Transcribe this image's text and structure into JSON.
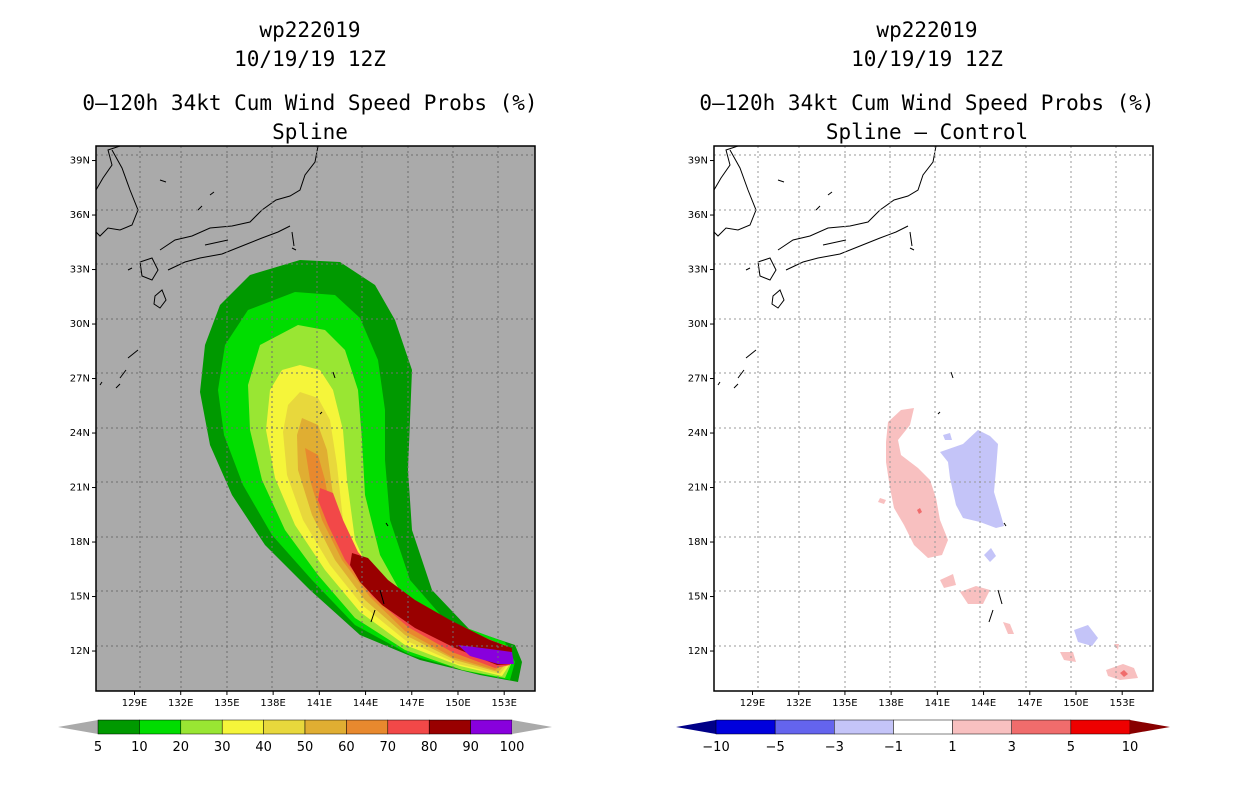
{
  "left_panel": {
    "title_lines": [
      "wp222019",
      "10/19/19 12Z",
      "0–120h 34kt Cum Wind Speed Probs (%)",
      "Spline"
    ]
  },
  "right_panel": {
    "title_lines": [
      "wp222019",
      "10/19/19 12Z",
      "0–120h 34kt Cum Wind Speed Probs (%)",
      "Spline – Control"
    ]
  },
  "chart_data": [
    {
      "type": "heatmap",
      "title": "0–120h 34kt Cum Wind Speed Probs (%)",
      "subtitle": "Spline",
      "storm": "wp222019",
      "datetime": "10/19/19 12Z",
      "x_ticks": [
        "129E",
        "132E",
        "135E",
        "138E",
        "141E",
        "144E",
        "147E",
        "150E",
        "153E"
      ],
      "y_ticks": [
        "39N",
        "36N",
        "33N",
        "30N",
        "27N",
        "24N",
        "21N",
        "18N",
        "15N",
        "12N"
      ],
      "x_range": [
        126.5,
        155
      ],
      "y_range": [
        9.8,
        39.8
      ],
      "colorbar": {
        "labels": [
          "5",
          "10",
          "20",
          "30",
          "40",
          "50",
          "60",
          "70",
          "80",
          "90",
          "100"
        ],
        "colors": [
          "#009900",
          "#00dd00",
          "#99e633",
          "#f5f53a",
          "#e8d83c",
          "#e0ae32",
          "#e8892e",
          "#f24848",
          "#990000",
          "#8800dd"
        ],
        "under_color": "#aaaaaa",
        "over_color": "#aaaaaa"
      },
      "background": "#aaaaaa"
    },
    {
      "type": "heatmap",
      "title": "0–120h 34kt Cum Wind Speed Probs (%)",
      "subtitle": "Spline – Control",
      "storm": "wp222019",
      "datetime": "10/19/19 12Z",
      "x_ticks": [
        "129E",
        "132E",
        "135E",
        "138E",
        "141E",
        "144E",
        "147E",
        "150E",
        "153E"
      ],
      "y_ticks": [
        "39N",
        "36N",
        "33N",
        "30N",
        "27N",
        "24N",
        "21N",
        "18N",
        "15N",
        "12N"
      ],
      "x_range": [
        126.5,
        155
      ],
      "y_range": [
        9.8,
        39.8
      ],
      "colorbar": {
        "labels": [
          "−10",
          "−5",
          "−3",
          "−1",
          "1",
          "3",
          "5",
          "10"
        ],
        "colors": [
          "#0000dd",
          "#6464ee",
          "#c4c4f8",
          "#ffffff",
          "#f8c0c0",
          "#f06c6c",
          "#ee0000"
        ],
        "under_color": "#000088",
        "over_color": "#880000"
      },
      "background": "#ffffff"
    }
  ]
}
